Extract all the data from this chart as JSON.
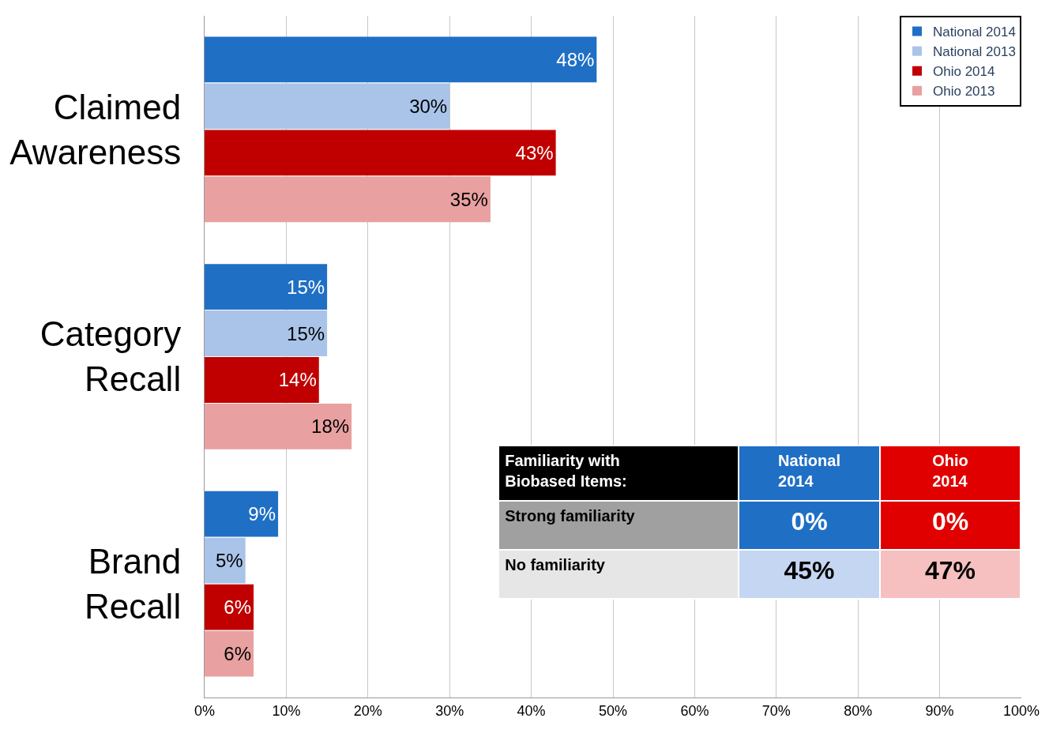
{
  "chart_data": {
    "type": "bar",
    "orientation": "horizontal",
    "categories": [
      "Claimed Awareness",
      "Category Recall",
      "Brand Recall"
    ],
    "series": [
      {
        "name": "National 2014",
        "color": "#1f6fc5",
        "values": [
          48,
          15,
          9
        ],
        "value_labels": [
          "48%",
          "15%",
          "9%"
        ]
      },
      {
        "name": "National 2013",
        "color": "#a9c4e8",
        "values": [
          30,
          15,
          5
        ],
        "value_labels": [
          "30%",
          "15%",
          "5%"
        ]
      },
      {
        "name": "Ohio 2014",
        "color": "#c00000",
        "values": [
          43,
          14,
          6
        ],
        "value_labels": [
          "43%",
          "14%",
          "6%"
        ]
      },
      {
        "name": "Ohio 2013",
        "color": "#e8a0a0",
        "values": [
          35,
          18,
          6
        ],
        "value_labels": [
          "35%",
          "18%",
          "6%"
        ]
      }
    ],
    "xlim": [
      0,
      100
    ],
    "xticks": [
      {
        "value": 0,
        "label": "0%"
      },
      {
        "value": 10,
        "label": "10%"
      },
      {
        "value": 20,
        "label": "20%"
      },
      {
        "value": 30,
        "label": "30%"
      },
      {
        "value": 40,
        "label": "40%"
      },
      {
        "value": 50,
        "label": "50%"
      },
      {
        "value": 60,
        "label": "60%"
      },
      {
        "value": 70,
        "label": "70%"
      },
      {
        "value": 80,
        "label": "80%"
      },
      {
        "value": 90,
        "label": "90%"
      },
      {
        "value": 100,
        "label": "100%"
      }
    ],
    "grid": "x",
    "legend": "top right",
    "annotations": [
      "Familiarity with Biobased Items:",
      "National 2014",
      "Ohio 2014",
      "Strong familiarity",
      "0%",
      "0%",
      "No familiarity",
      "45%",
      "47%"
    ]
  }
}
